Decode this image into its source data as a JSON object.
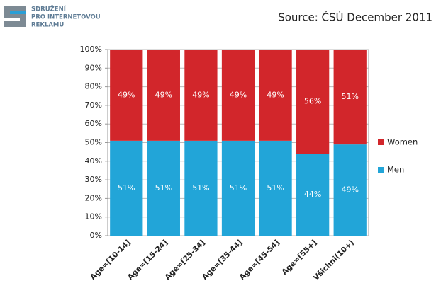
{
  "header": {
    "logo_lines": [
      "SDRUŽENÍ",
      "PRO INTERNETOVOU",
      "REKLAMU"
    ]
  },
  "chart_data": {
    "type": "stacked_bar",
    "subtitle": "Source: ČSÚ December 2011",
    "categories": [
      "Age=[10-14]",
      "Age=[15-24]",
      "Age=[25-34]",
      "Age=[35-44]",
      "Age=[45-54]",
      "Age=[55+]",
      "Všichni(10+)"
    ],
    "series": [
      {
        "name": "Men",
        "color": "#22a5d8",
        "values": [
          51,
          51,
          51,
          51,
          51,
          44,
          49
        ],
        "value_labels": [
          "51%",
          "51%",
          "51%",
          "51%",
          "51%",
          "44%",
          "49%"
        ]
      },
      {
        "name": "Women",
        "color": "#d2262b",
        "values": [
          49,
          49,
          49,
          49,
          49,
          56,
          51
        ],
        "value_labels": [
          "49%",
          "49%",
          "49%",
          "49%",
          "49%",
          "56%",
          "51%"
        ]
      }
    ],
    "ylim": [
      0,
      100
    ],
    "yticks": [
      {
        "value": 0,
        "label": "0%"
      },
      {
        "value": 10,
        "label": "10%"
      },
      {
        "value": 20,
        "label": "20%"
      },
      {
        "value": 30,
        "label": "30%"
      },
      {
        "value": 40,
        "label": "40%"
      },
      {
        "value": 50,
        "label": "50%"
      },
      {
        "value": 60,
        "label": "60%"
      },
      {
        "value": 70,
        "label": "70%"
      },
      {
        "value": 80,
        "label": "80%"
      },
      {
        "value": 90,
        "label": "90%"
      },
      {
        "value": 100,
        "label": "100%"
      }
    ],
    "grid": true,
    "legend": "right"
  }
}
